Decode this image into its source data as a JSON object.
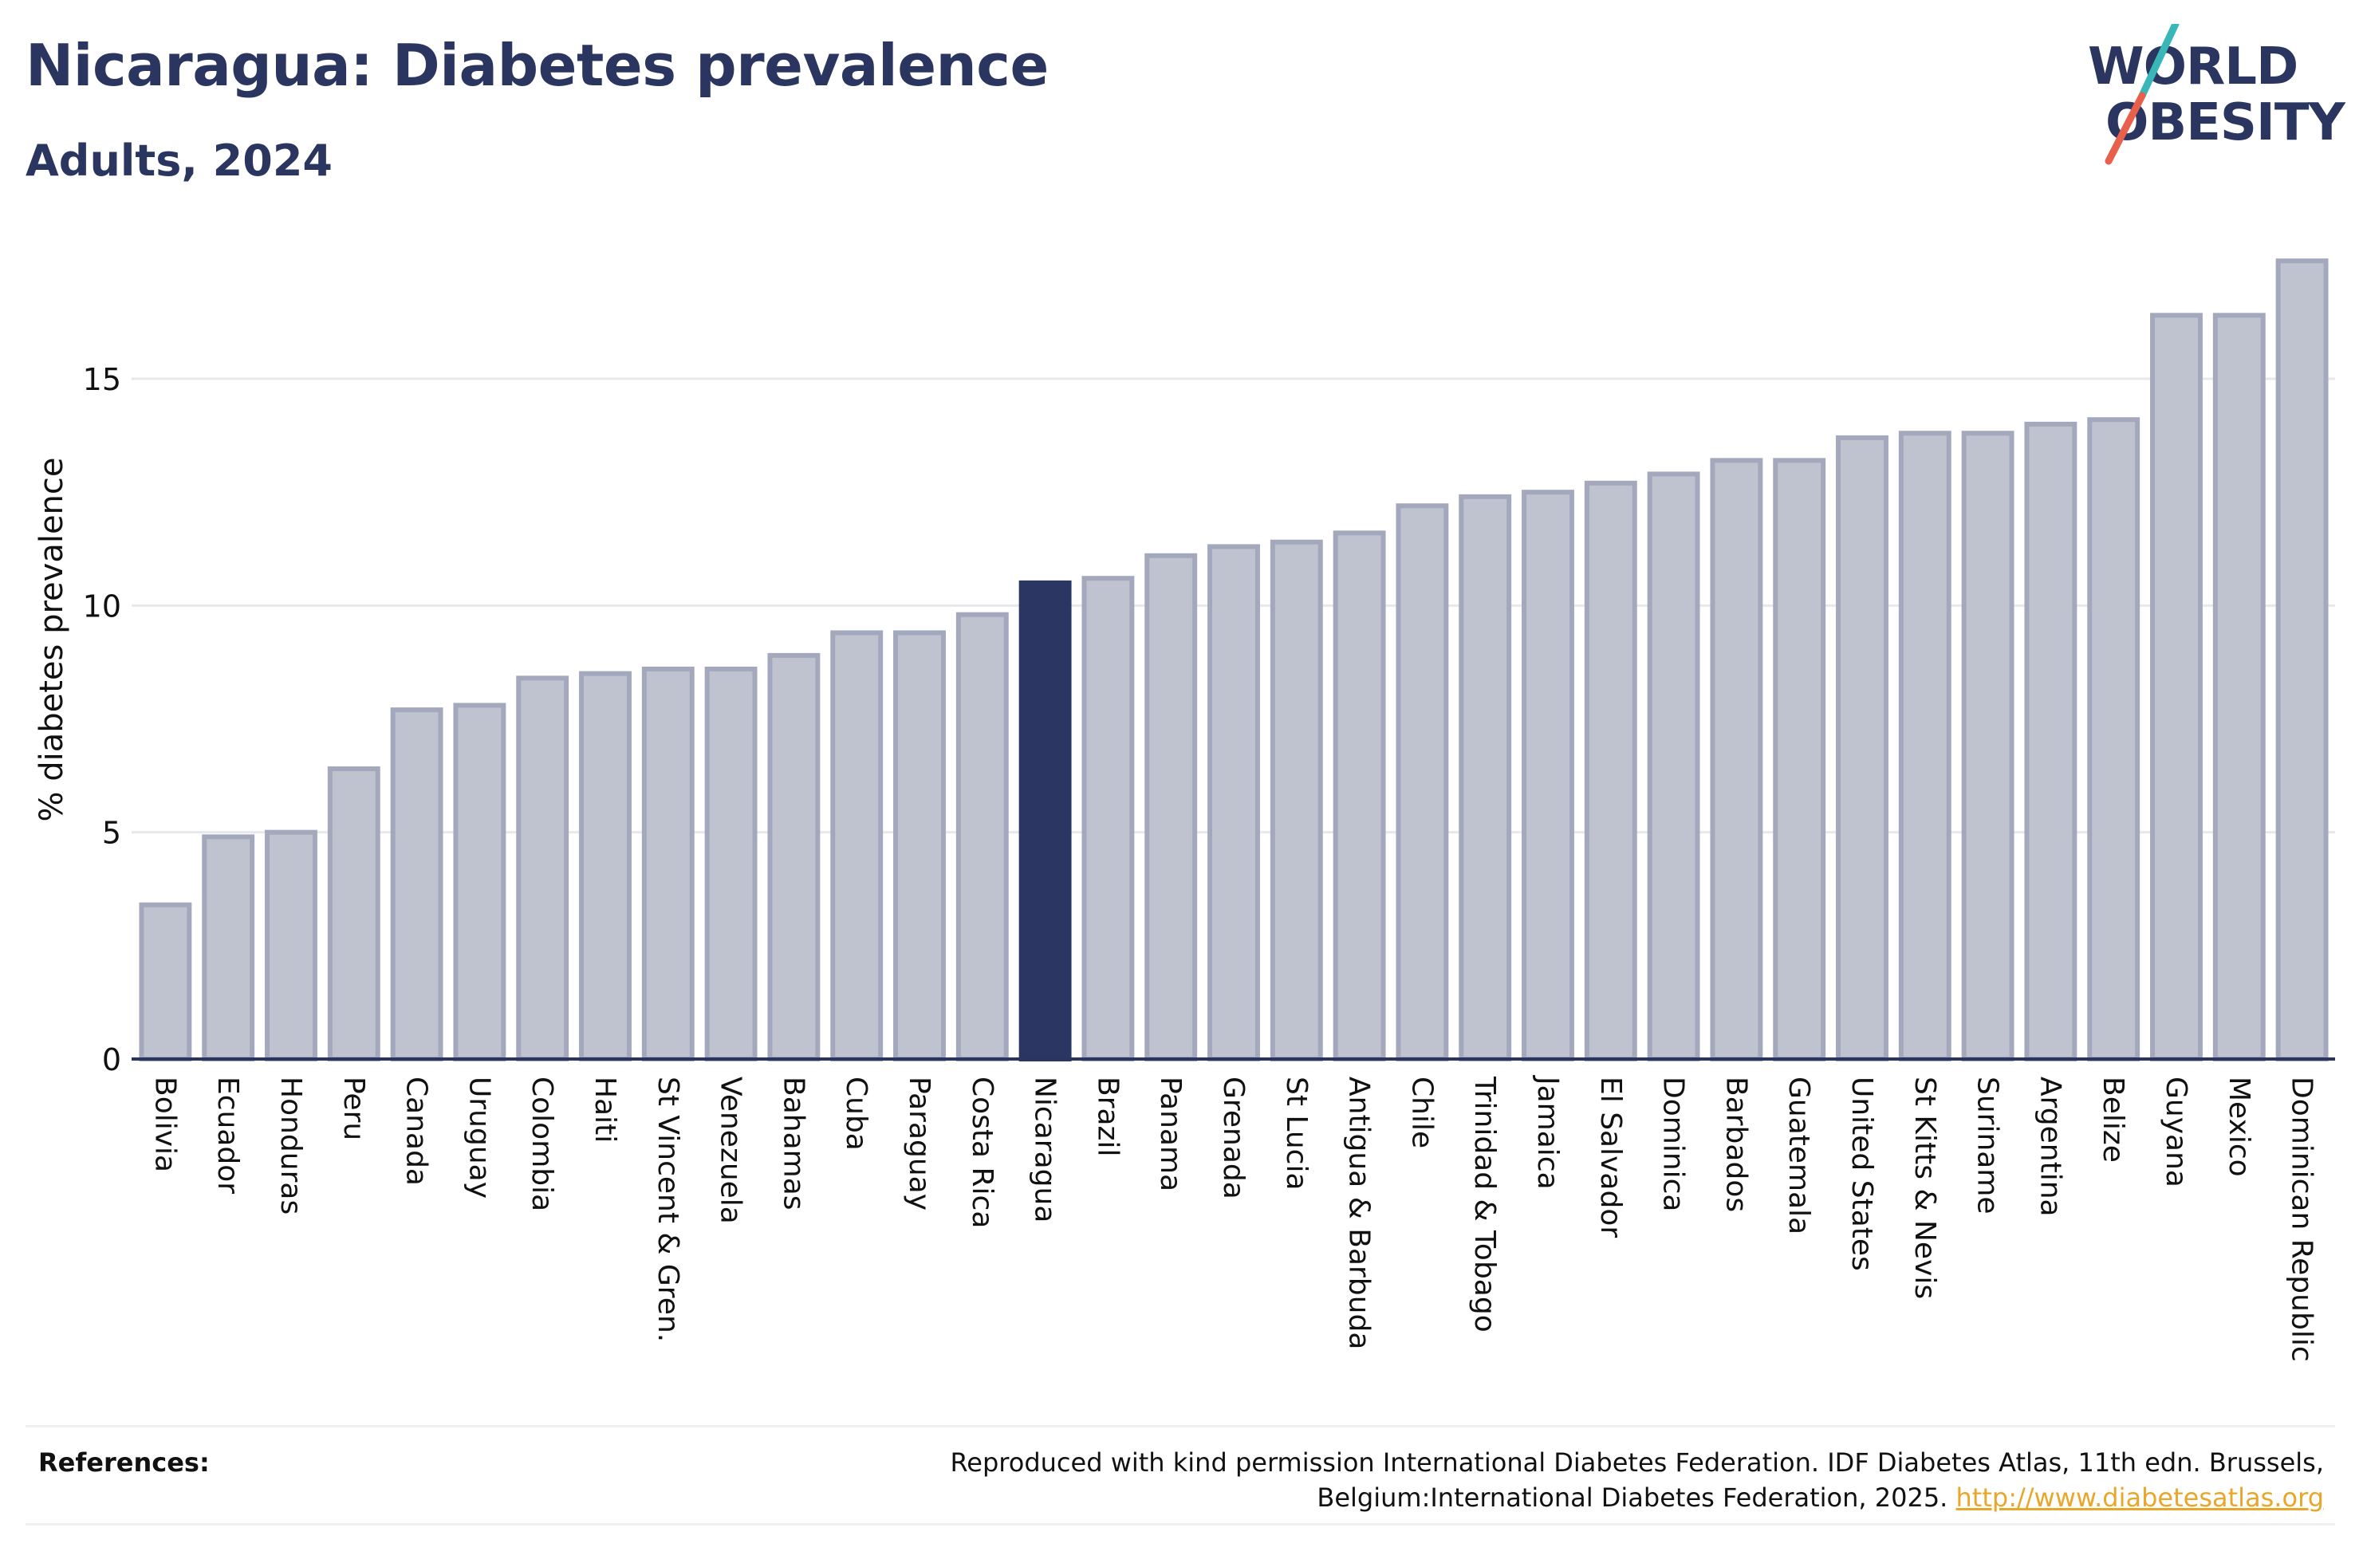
{
  "header": {
    "title": "Nicaragua: Diabetes prevalence",
    "subtitle": "Adults, 2024"
  },
  "logo": {
    "line1": "WORLD",
    "line2": "OBESITY",
    "slash_colors": [
      "#38b6b8",
      "#e8604c"
    ]
  },
  "colors": {
    "highlight_bar": "#2b3662",
    "other_bar": "#bfc3cf",
    "other_bar_border": "#a3a8bc",
    "axis": "#2a3560",
    "grid": "#e6e8ec"
  },
  "chart_data": {
    "type": "bar",
    "ylabel": "% diabetes prevalence",
    "xlabel": "",
    "ylim": [
      0,
      18
    ],
    "yticks": [
      0,
      5,
      10,
      15
    ],
    "grid": true,
    "highlight": "Nicaragua",
    "categories": [
      "Bolivia",
      "Ecuador",
      "Honduras",
      "Peru",
      "Canada",
      "Uruguay",
      "Colombia",
      "Haiti",
      "St Vincent & Gren.",
      "Venezuela",
      "Bahamas",
      "Cuba",
      "Paraguay",
      "Costa Rica",
      "Nicaragua",
      "Brazil",
      "Panama",
      "Grenada",
      "St Lucia",
      "Antigua & Barbuda",
      "Chile",
      "Trinidad & Tobago",
      "Jamaica",
      "El Salvador",
      "Dominica",
      "Barbados",
      "Guatemala",
      "United States",
      "St Kitts & Nevis",
      "Suriname",
      "Argentina",
      "Belize",
      "Guyana",
      "Mexico",
      "Dominican Republic"
    ],
    "values": [
      3.4,
      4.9,
      5.0,
      6.4,
      7.7,
      7.8,
      8.4,
      8.5,
      8.6,
      8.6,
      8.9,
      9.4,
      9.4,
      9.8,
      10.5,
      10.6,
      11.1,
      11.3,
      11.4,
      11.6,
      12.2,
      12.4,
      12.5,
      12.7,
      12.9,
      13.2,
      13.2,
      13.7,
      13.8,
      13.8,
      14.0,
      14.1,
      16.4,
      16.4,
      17.6
    ]
  },
  "references": {
    "label": "References:",
    "text": "Reproduced with kind permission International Diabetes Federation. IDF Diabetes Atlas, 11th edn. Brussels, Belgium:International Diabetes Federation, 2025. ",
    "link": "http://www.diabetesatlas.org"
  }
}
